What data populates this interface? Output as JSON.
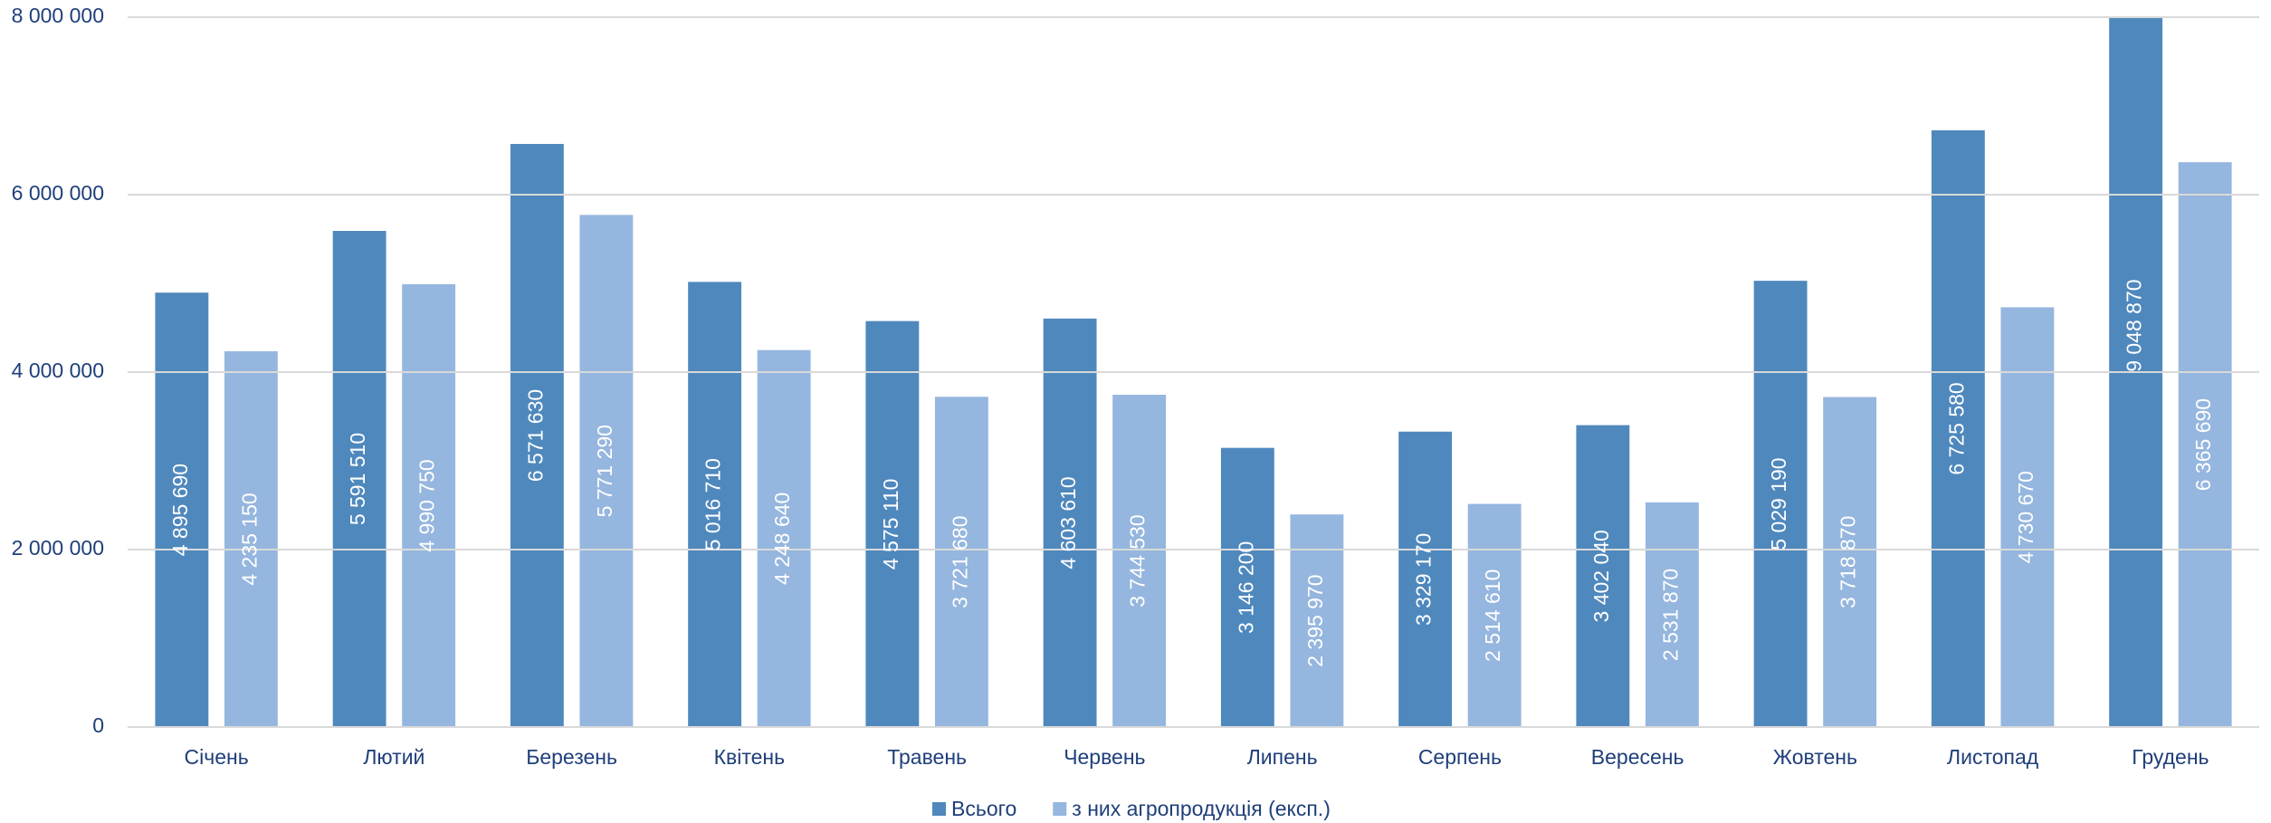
{
  "chart_data": {
    "type": "bar",
    "categories": [
      "Січень",
      "Лютий",
      "Березень",
      "Квітень",
      "Травень",
      "Червень",
      "Липень",
      "Серпень",
      "Вересень",
      "Жовтень",
      "Листопад",
      "Грудень"
    ],
    "series": [
      {
        "name": "Всього",
        "color": "#4f88bd",
        "values": [
          4895690,
          5591510,
          6571630,
          5016710,
          4575110,
          4603610,
          3146200,
          3329170,
          3402040,
          5029190,
          6725580,
          9048870
        ],
        "value_labels": [
          "4 895 690",
          "5 591 510",
          "6 571 630",
          "5 016 710",
          "4 575 110",
          "4 603 610",
          "3 146 200",
          "3 329 170",
          "3 402 040",
          "5 029 190",
          "6 725 580",
          "9 048 870"
        ]
      },
      {
        "name": "з них агропродукція (експ.)",
        "color": "#95b6de",
        "values": [
          4235150,
          4990750,
          5771290,
          4248640,
          3721680,
          3744530,
          2395970,
          2514610,
          2531870,
          3718870,
          4730670,
          6365690
        ],
        "value_labels": [
          "4 235 150",
          "4 990 750",
          "5 771 290",
          "4 248 640",
          "3 721 680",
          "3 744 530",
          "2 395 970",
          "2 514 610",
          "2 531 870",
          "3 718 870",
          "4 730 670",
          "6 365 690"
        ]
      }
    ],
    "ylim": [
      0,
      8000000
    ],
    "yticks": [
      {
        "value": 0,
        "label": "0"
      },
      {
        "value": 2000000,
        "label": "2 000 000"
      },
      {
        "value": 4000000,
        "label": "4 000 000"
      },
      {
        "value": 6000000,
        "label": "6 000 000"
      },
      {
        "value": 8000000,
        "label": "8 000 000"
      }
    ],
    "grid": true,
    "legend": "bottom"
  }
}
